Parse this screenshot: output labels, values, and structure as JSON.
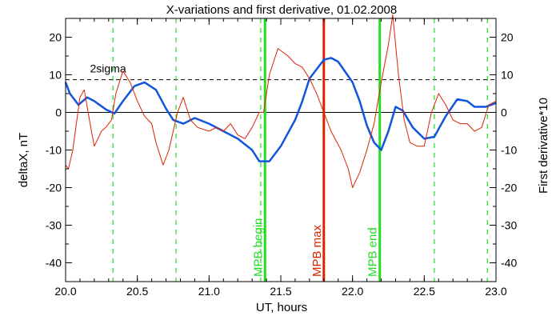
{
  "chart_data": {
    "type": "line",
    "title": "X-variations and first derivative, 01.02.2008",
    "xlabel": "UT, hours",
    "ylabel_left": "deltaX, nT",
    "ylabel_right": "First derivative*10",
    "xlim": [
      20.0,
      23.0
    ],
    "ylim": [
      -45,
      25
    ],
    "x_ticks": [
      "20.0",
      "20.5",
      "21.0",
      "21.5",
      "22.0",
      "22.5",
      "23.0"
    ],
    "y_ticks_left": [
      "20",
      "10",
      "0",
      "-10",
      "-20",
      "-30",
      "-40"
    ],
    "y_ticks_right": [
      "20",
      "10",
      "0",
      "-10",
      "-20",
      "-30",
      "-40"
    ],
    "grid": false,
    "colors": {
      "deltaX": "#1155dd",
      "derivative": "#dd2200",
      "green": "#22dd22",
      "red": "#dd2200"
    },
    "series": [
      {
        "color": "#1155dd",
        "points": [
          [
            20.0,
            8.0
          ],
          [
            20.03,
            5.0
          ],
          [
            20.09,
            2.0
          ],
          [
            20.15,
            4.0
          ],
          [
            20.2,
            3.0
          ],
          [
            20.28,
            0.8
          ],
          [
            20.34,
            -0.3
          ],
          [
            20.4,
            3.0
          ],
          [
            20.48,
            7.0
          ],
          [
            20.55,
            8.0
          ],
          [
            20.63,
            6.0
          ],
          [
            20.7,
            1.0
          ],
          [
            20.75,
            -2.0
          ],
          [
            20.82,
            -3.0
          ],
          [
            20.9,
            -1.5
          ],
          [
            21.0,
            -3.0
          ],
          [
            21.1,
            -5.0
          ],
          [
            21.2,
            -7.0
          ],
          [
            21.3,
            -10.0
          ],
          [
            21.35,
            -13.0
          ],
          [
            21.42,
            -13.0
          ],
          [
            21.5,
            -9.0
          ],
          [
            21.6,
            -2.0
          ],
          [
            21.65,
            3.0
          ],
          [
            21.7,
            9.0
          ],
          [
            21.8,
            14.0
          ],
          [
            21.85,
            14.5
          ],
          [
            21.9,
            13.5
          ],
          [
            22.0,
            8.0
          ],
          [
            22.05,
            3.0
          ],
          [
            22.1,
            -3.5
          ],
          [
            22.15,
            -8.0
          ],
          [
            22.2,
            -10.0
          ],
          [
            22.25,
            -5.0
          ],
          [
            22.3,
            1.5
          ],
          [
            22.35,
            0.5
          ],
          [
            22.42,
            -4.0
          ],
          [
            22.5,
            -7.0
          ],
          [
            22.57,
            -6.5
          ],
          [
            22.65,
            -1.0
          ],
          [
            22.73,
            3.5
          ],
          [
            22.8,
            3.0
          ],
          [
            22.85,
            1.5
          ],
          [
            22.93,
            1.5
          ],
          [
            23.0,
            2.5
          ]
        ]
      },
      {
        "color": "#dd2200",
        "points": [
          [
            20.0,
            -14.0
          ],
          [
            20.02,
            -15.0
          ],
          [
            20.05,
            -10.0
          ],
          [
            20.1,
            4.0
          ],
          [
            20.13,
            6.0
          ],
          [
            20.18,
            -5.0
          ],
          [
            20.2,
            -9.0
          ],
          [
            20.25,
            -5.0
          ],
          [
            20.28,
            -4.0
          ],
          [
            20.32,
            -2.0
          ],
          [
            20.35,
            5.0
          ],
          [
            20.4,
            11.0
          ],
          [
            20.45,
            8.0
          ],
          [
            20.5,
            3.0
          ],
          [
            20.55,
            -1.0
          ],
          [
            20.6,
            -3.0
          ],
          [
            20.63,
            -8.0
          ],
          [
            20.68,
            -14.0
          ],
          [
            20.72,
            -10.0
          ],
          [
            20.78,
            0.0
          ],
          [
            20.82,
            4.0
          ],
          [
            20.87,
            -2.0
          ],
          [
            20.92,
            -4.0
          ],
          [
            21.0,
            -5.0
          ],
          [
            21.05,
            -4.0
          ],
          [
            21.1,
            -5.0
          ],
          [
            21.15,
            -3.0
          ],
          [
            21.2,
            -6.0
          ],
          [
            21.25,
            -7.0
          ],
          [
            21.3,
            -4.0
          ],
          [
            21.35,
            0.0
          ],
          [
            21.38,
            0.0
          ],
          [
            21.42,
            10.0
          ],
          [
            21.48,
            17.0
          ],
          [
            21.55,
            15.0
          ],
          [
            21.6,
            13.0
          ],
          [
            21.65,
            12.0
          ],
          [
            21.7,
            9.0
          ],
          [
            21.75,
            5.0
          ],
          [
            21.8,
            0.0
          ],
          [
            21.85,
            -5.0
          ],
          [
            21.92,
            -10.0
          ],
          [
            21.97,
            -15.0
          ],
          [
            22.0,
            -20.0
          ],
          [
            22.05,
            -16.0
          ],
          [
            22.1,
            -10.0
          ],
          [
            22.15,
            -3.0
          ],
          [
            22.2,
            8.0
          ],
          [
            22.25,
            18.0
          ],
          [
            22.28,
            26.0
          ],
          [
            22.32,
            10.0
          ],
          [
            22.36,
            -2.0
          ],
          [
            22.4,
            -8.0
          ],
          [
            22.45,
            -9.0
          ],
          [
            22.5,
            -9.0
          ],
          [
            22.55,
            0.0
          ],
          [
            22.6,
            5.0
          ],
          [
            22.65,
            2.0
          ],
          [
            22.7,
            -2.0
          ],
          [
            22.75,
            -3.0
          ],
          [
            22.8,
            -3.0
          ],
          [
            22.85,
            -5.0
          ],
          [
            22.9,
            -4.0
          ],
          [
            22.95,
            2.0
          ],
          [
            23.0,
            3.0
          ]
        ]
      }
    ],
    "reference_lines": [
      {
        "y": 8.7,
        "style": "dashed",
        "color": "#000000",
        "label": "2sigma"
      },
      {
        "y": 0,
        "style": "solid",
        "color": "#000000"
      }
    ],
    "vertical_markers": [
      {
        "x": 20.33,
        "style": "dashed",
        "color": "#22dd22"
      },
      {
        "x": 20.77,
        "style": "dashed",
        "color": "#22dd22"
      },
      {
        "x": 21.36,
        "style": "dashed",
        "color": "#22dd22"
      },
      {
        "x": 22.57,
        "style": "dashed",
        "color": "#22dd22"
      },
      {
        "x": 22.94,
        "style": "dashed",
        "color": "#22dd22"
      },
      {
        "x": 21.39,
        "style": "solid",
        "color": "#22dd22",
        "label": "MPB begin"
      },
      {
        "x": 21.8,
        "style": "solid",
        "color": "#dd2200",
        "label": "MPB max"
      },
      {
        "x": 22.19,
        "style": "solid",
        "color": "#22dd22",
        "label": "MPB end"
      }
    ]
  }
}
